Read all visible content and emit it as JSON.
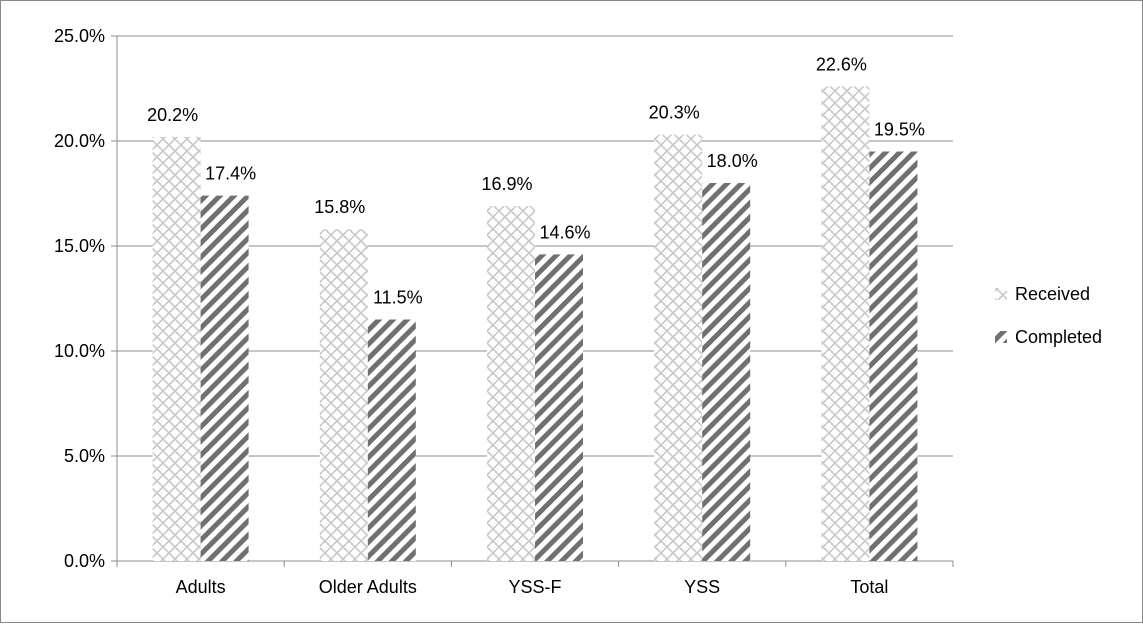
{
  "chart_data": {
    "type": "bar",
    "categories": [
      "Adults",
      "Older Adults",
      "YSS-F",
      "YSS",
      "Total"
    ],
    "series": [
      {
        "name": "Received",
        "values": [
          20.2,
          15.8,
          16.9,
          20.3,
          22.6
        ],
        "labels": [
          "20.2%",
          "15.8%",
          "16.9%",
          "20.3%",
          "22.6%"
        ]
      },
      {
        "name": "Completed",
        "values": [
          17.4,
          11.5,
          14.6,
          18.0,
          19.5
        ],
        "labels": [
          "17.4%",
          "11.5%",
          "14.6%",
          "18.0%",
          "19.5%"
        ]
      }
    ],
    "ylim": [
      0,
      25
    ],
    "yticks": [
      "0.0%",
      "5.0%",
      "10.0%",
      "15.0%",
      "20.0%",
      "25.0%"
    ],
    "grid": true,
    "legend_position": "right",
    "colors": {
      "received_pattern": "#c8c8c8",
      "completed_pattern": "#707070",
      "grid": "#8c8c8c",
      "axis": "#8c8c8c"
    }
  }
}
